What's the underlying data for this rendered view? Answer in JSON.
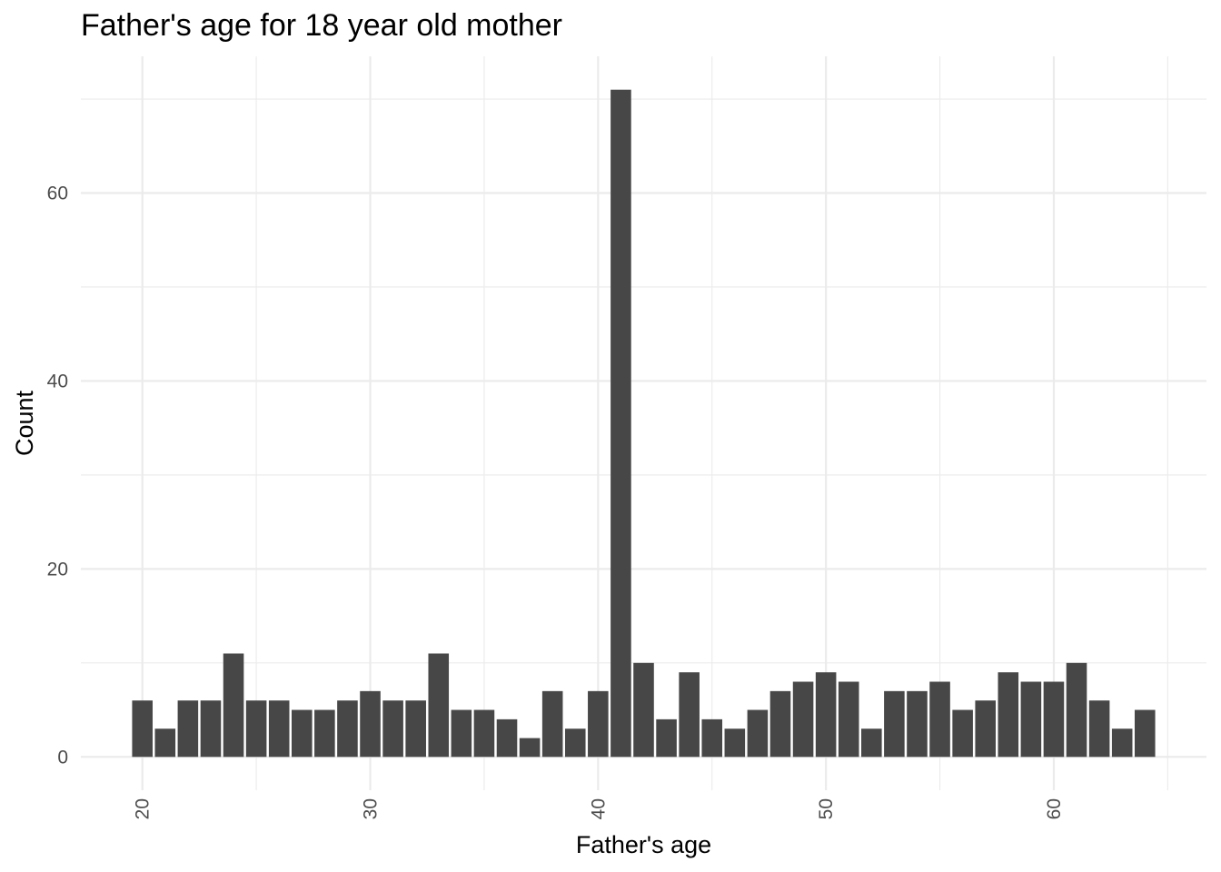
{
  "chart_data": {
    "type": "bar",
    "title": "Father's age for 18 year old mother",
    "xlabel": "Father's age",
    "ylabel": "Count",
    "x": [
      20,
      21,
      22,
      23,
      24,
      25,
      26,
      27,
      28,
      29,
      30,
      31,
      32,
      33,
      34,
      35,
      36,
      37,
      38,
      39,
      40,
      41,
      42,
      43,
      44,
      45,
      46,
      47,
      48,
      49,
      50,
      51,
      52,
      53,
      54,
      55,
      56,
      57,
      58,
      59,
      60,
      61,
      62,
      63,
      64
    ],
    "values": [
      6,
      3,
      6,
      6,
      11,
      6,
      6,
      5,
      5,
      6,
      7,
      6,
      6,
      11,
      5,
      5,
      4,
      2,
      7,
      3,
      7,
      71,
      10,
      4,
      9,
      4,
      3,
      5,
      7,
      8,
      9,
      8,
      3,
      7,
      7,
      8,
      5,
      6,
      9,
      8,
      8,
      10,
      6,
      3,
      5
    ],
    "x_ticks": [
      20,
      30,
      40,
      50,
      60
    ],
    "y_ticks": [
      0,
      20,
      40,
      60
    ],
    "xlim": [
      17.3,
      66.7
    ],
    "ylim": [
      -3.55,
      74.55
    ],
    "bar_color": "#474747",
    "grid": true,
    "theme": "minimal"
  }
}
